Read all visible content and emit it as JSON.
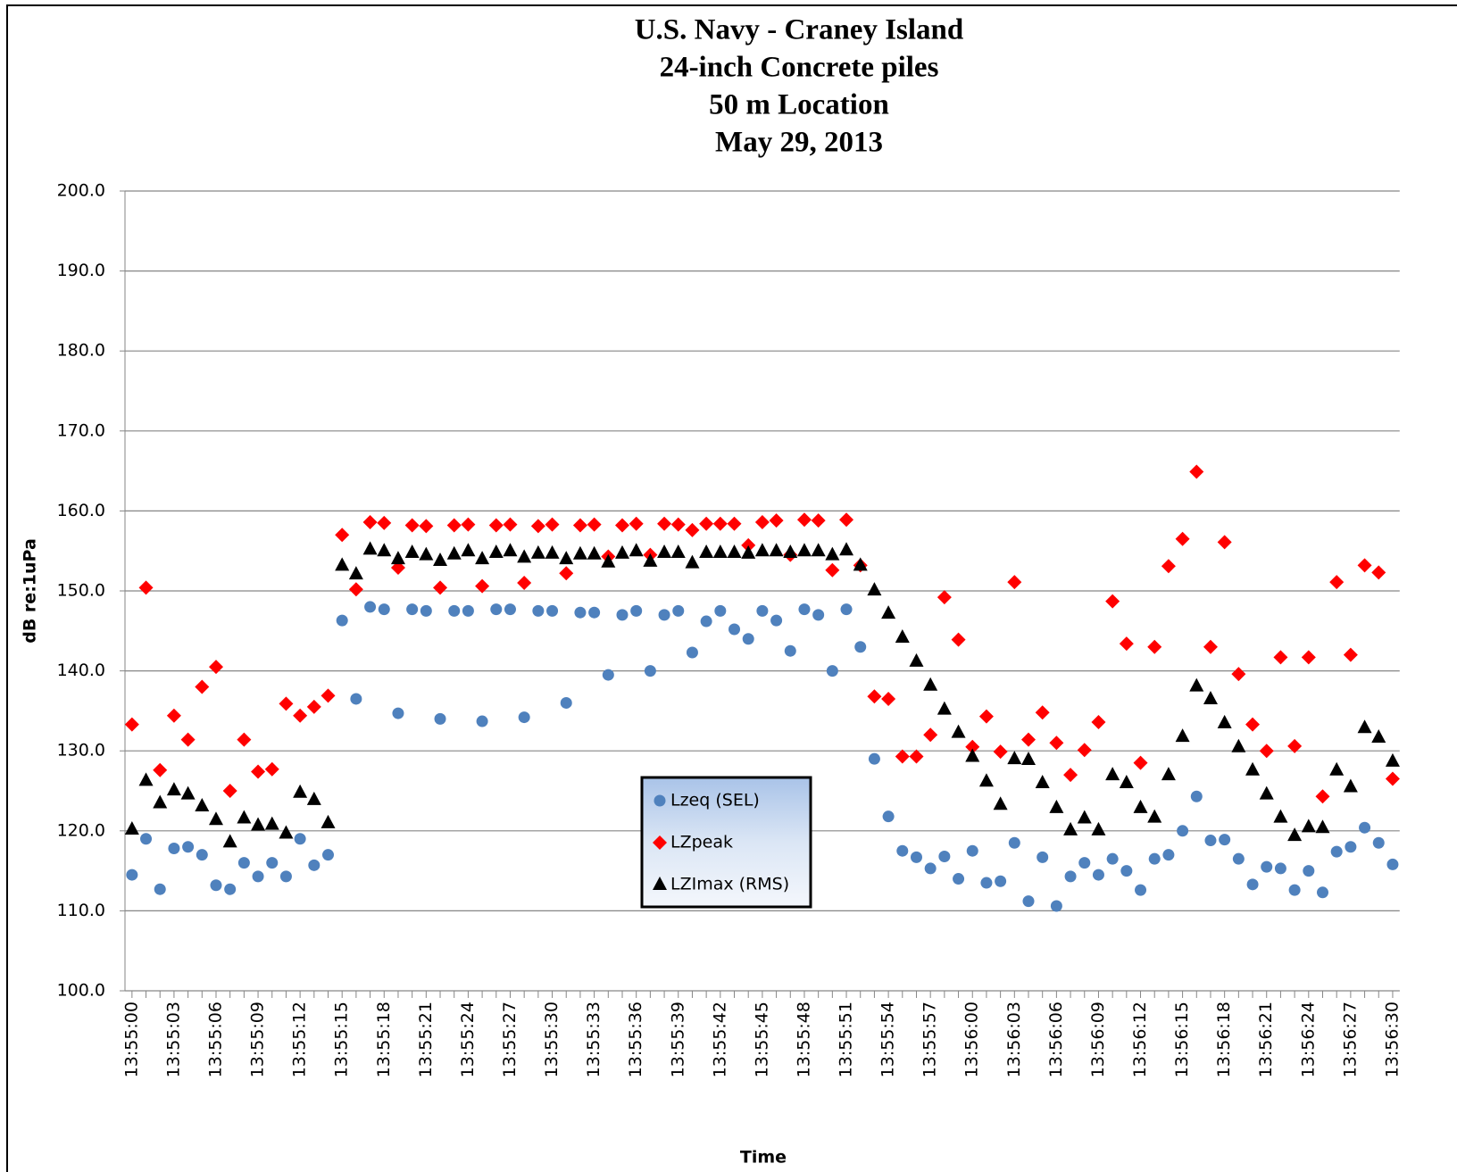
{
  "chart_data": {
    "type": "scatter",
    "title": [
      "U.S. Navy - Craney Island",
      "24-inch Concrete piles",
      "50 m Location",
      "May 29, 2013"
    ],
    "x_label": "Time",
    "y_label": "dB re:1uPa",
    "categories": [
      "13:55:00",
      null,
      null,
      "13:55:03",
      null,
      null,
      "13:55:06",
      null,
      null,
      "13:55:09",
      null,
      null,
      "13:55:12",
      null,
      null,
      "13:55:15",
      null,
      null,
      "13:55:18",
      null,
      null,
      "13:55:21",
      null,
      null,
      "13:55:24",
      null,
      null,
      "13:55:27",
      null,
      null,
      "13:55:30",
      null,
      null,
      "13:55:33",
      null,
      null,
      "13:55:36",
      null,
      null,
      "13:55:39",
      null,
      null,
      "13:55:42",
      null,
      null,
      "13:55:45",
      null,
      null,
      "13:55:48",
      null,
      null,
      "13:55:51",
      null,
      null,
      "13:55:54",
      null,
      null,
      "13:55:57",
      null,
      null,
      "13:56:00",
      null,
      null,
      "13:56:03",
      null,
      null,
      "13:56:06",
      null,
      null,
      "13:56:09",
      null,
      null,
      "13:56:12",
      null,
      null,
      "13:56:15",
      null,
      null,
      "13:56:18",
      null,
      null,
      "13:56:21",
      null,
      null,
      "13:56:24",
      null,
      null,
      "13:56:27",
      null,
      null,
      "13:56:30"
    ],
    "ylim": [
      100,
      200
    ],
    "yticks": [
      {
        "value": 100,
        "label": "100.0"
      },
      {
        "value": 110,
        "label": "110.0"
      },
      {
        "value": 120,
        "label": "120.0"
      },
      {
        "value": 130,
        "label": "130.0"
      },
      {
        "value": 140,
        "label": "140.0"
      },
      {
        "value": 150,
        "label": "150.0"
      },
      {
        "value": 160,
        "label": "160.0"
      },
      {
        "value": 170,
        "label": "170.0"
      },
      {
        "value": 180,
        "label": "180.0"
      },
      {
        "value": 190,
        "label": "190.0"
      },
      {
        "value": 200,
        "label": "200.0"
      }
    ],
    "grid": true,
    "legend": "center-bottom",
    "series": [
      {
        "name": "Lzeq (SEL)",
        "color": "#4f81bd",
        "marker": "circle",
        "values": [
          114.5,
          119,
          112.7,
          117.8,
          118,
          117,
          113.2,
          112.7,
          116,
          114.3,
          116,
          114.3,
          119,
          115.7,
          117,
          146.3,
          136.5,
          148,
          147.7,
          134.7,
          147.7,
          147.5,
          134,
          147.5,
          147.5,
          133.7,
          147.7,
          147.7,
          134.2,
          147.5,
          147.5,
          136,
          147.3,
          147.3,
          139.5,
          147,
          147.5,
          140,
          147,
          147.5,
          142.3,
          146.2,
          147.5,
          145.2,
          144,
          147.5,
          146.3,
          142.5,
          147.7,
          147,
          140,
          147.7,
          143,
          129,
          121.8,
          117.5,
          116.7,
          115.3,
          116.8,
          114,
          117.5,
          113.5,
          113.7,
          118.5,
          111.2,
          116.7,
          110.6,
          114.3,
          116,
          114.5,
          116.5,
          115,
          112.6,
          116.5,
          117,
          120,
          124.3,
          118.8,
          118.9,
          116.5,
          113.3,
          115.5,
          115.3,
          112.6,
          115,
          112.3,
          117.4,
          118,
          120.4,
          118.5,
          115.8
        ]
      },
      {
        "name": "LZpeak",
        "color": "#ff0000",
        "marker": "diamond",
        "values": [
          133.3,
          150.4,
          127.6,
          134.4,
          131.4,
          138,
          140.5,
          125,
          131.4,
          127.4,
          127.7,
          135.9,
          134.4,
          135.5,
          136.9,
          157,
          150.2,
          158.6,
          158.5,
          152.9,
          158.2,
          158.1,
          150.4,
          158.2,
          158.3,
          150.6,
          158.2,
          158.3,
          151,
          158.1,
          158.3,
          152.2,
          158.2,
          158.3,
          154.3,
          158.2,
          158.4,
          154.5,
          158.4,
          158.3,
          157.6,
          158.4,
          158.4,
          158.4,
          155.7,
          158.6,
          158.8,
          154.5,
          158.9,
          158.8,
          152.6,
          158.9,
          153.2,
          136.8,
          136.5,
          129.3,
          129.3,
          132,
          149.2,
          143.9,
          130.5,
          134.3,
          129.9,
          151.1,
          131.4,
          134.8,
          131,
          127,
          130.1,
          133.6,
          148.7,
          143.4,
          128.5,
          143,
          153.1,
          156.5,
          164.9,
          143,
          156.1,
          139.6,
          133.3,
          130,
          141.7,
          130.6,
          141.7,
          124.3,
          151.1,
          142,
          153.2,
          152.3,
          126.5
        ]
      },
      {
        "name": "LZImax (RMS)",
        "color": "#000000",
        "marker": "triangle",
        "values": [
          120.2,
          126.3,
          123.5,
          125.1,
          124.6,
          123.1,
          121.4,
          118.6,
          121.6,
          120.7,
          120.8,
          119.7,
          124.8,
          123.9,
          121,
          153.2,
          152.1,
          155.2,
          155,
          154,
          154.8,
          154.5,
          153.8,
          154.6,
          155,
          154,
          154.8,
          155,
          154.2,
          154.7,
          154.7,
          154,
          154.6,
          154.6,
          153.6,
          154.7,
          155,
          153.7,
          154.8,
          154.8,
          153.5,
          154.8,
          154.8,
          154.8,
          154.7,
          155,
          155,
          154.8,
          155,
          155,
          154.5,
          155.1,
          153.2,
          150.1,
          147.2,
          144.2,
          141.2,
          138.2,
          135.2,
          132.3,
          129.3,
          126.2,
          123.3,
          129,
          128.9,
          126,
          122.9,
          120.1,
          121.6,
          120.1,
          127,
          126,
          122.9,
          121.7,
          127,
          131.8,
          138.1,
          136.5,
          133.5,
          130.5,
          127.6,
          124.6,
          121.7,
          119.4,
          120.5,
          120.4,
          127.6,
          125.5,
          132.9,
          131.7,
          128.7
        ]
      }
    ]
  }
}
